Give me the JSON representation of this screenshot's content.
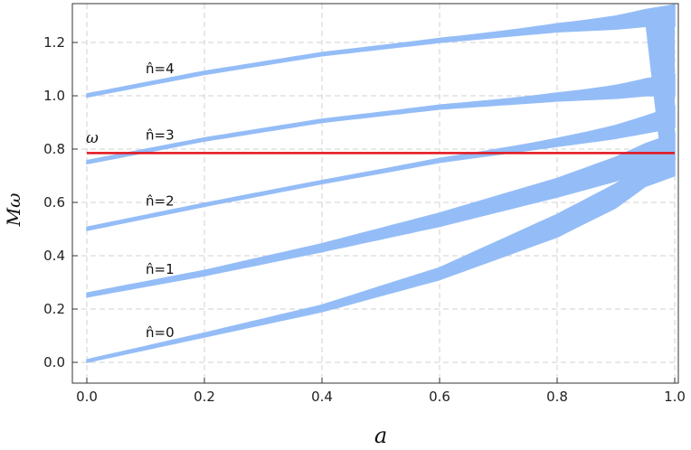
{
  "chart_data": {
    "type": "area",
    "xlabel": "a",
    "ylabel": "Mω",
    "xlim": [
      0,
      1
    ],
    "ylim": [
      -0.05,
      1.27
    ],
    "xticks": [
      "0.0",
      "0.2",
      "0.4",
      "0.6",
      "0.8",
      "1.0"
    ],
    "yticks": [
      "0.0",
      "0.2",
      "0.4",
      "0.6",
      "0.8",
      "1.0",
      "1.2"
    ],
    "grid": true,
    "band_color": "#94BDF7",
    "line_color": "#E3141B",
    "bands": [
      {
        "label": "n̂=0",
        "x": [
          0,
          0.2,
          0.4,
          0.6,
          0.8,
          0.9,
          0.95,
          1.0
        ],
        "lower": [
          0,
          0.095,
          0.19,
          0.31,
          0.47,
          0.58,
          0.66,
          0.7
        ],
        "upper": [
          0.01,
          0.11,
          0.215,
          0.355,
          0.555,
          0.67,
          0.74,
          0.78
        ]
      },
      {
        "label": "n̂=1",
        "x": [
          0,
          0.2,
          0.4,
          0.6,
          0.8,
          0.9,
          0.95,
          1.0
        ],
        "lower": [
          0.245,
          0.325,
          0.415,
          0.51,
          0.62,
          0.68,
          0.72,
          0.76
        ],
        "upper": [
          0.26,
          0.345,
          0.445,
          0.56,
          0.69,
          0.77,
          0.82,
          0.86
        ]
      },
      {
        "label": "n̂=2",
        "x": [
          0,
          0.2,
          0.4,
          0.6,
          0.8,
          0.9,
          0.95,
          1.0
        ],
        "lower": [
          0.495,
          0.585,
          0.67,
          0.75,
          0.81,
          0.84,
          0.86,
          0.88
        ]
      },
      {
        "label": "n̂=3",
        "x": [
          0,
          0.2,
          0.4,
          0.6,
          0.8,
          0.9,
          0.95,
          1.0
        ],
        "lower": [
          0.745,
          0.83,
          0.9,
          0.95,
          0.98,
          0.99,
          1.0,
          1.0
        ]
      },
      {
        "label": "n̂=4",
        "x": [
          0,
          0.2,
          0.4,
          0.6,
          0.8,
          0.9,
          0.95,
          1.0
        ],
        "lower": [
          0.995,
          1.08,
          1.15,
          1.2,
          1.24,
          1.25,
          1.26,
          1.26
        ]
      }
    ],
    "horizontal_line": {
      "label": "ω",
      "y": 0.785
    }
  }
}
